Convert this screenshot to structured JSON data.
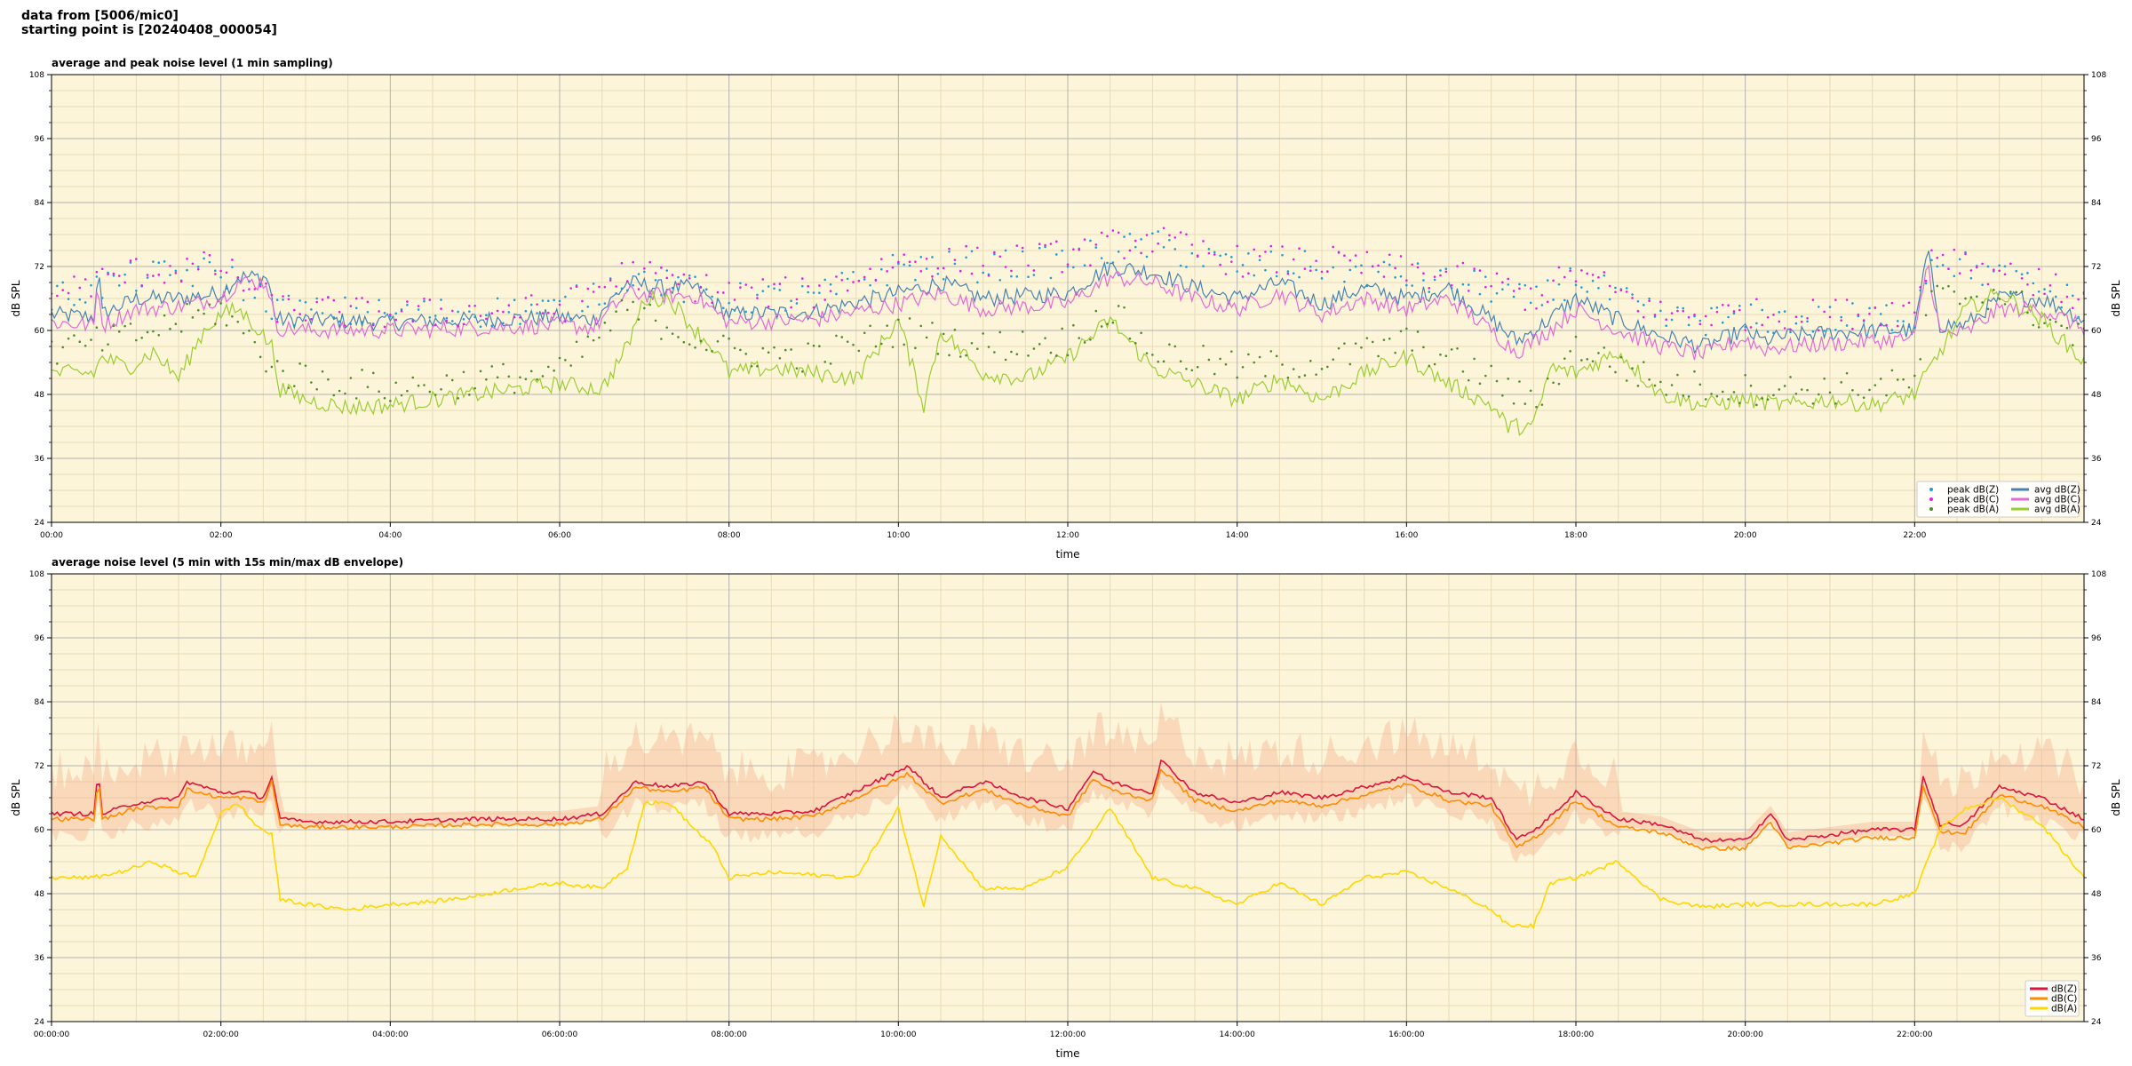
{
  "header": {
    "line1": "data from [5006/mic0]",
    "line2": "starting point is [20240408_000054]"
  },
  "colors": {
    "plot_bg": "#fdf5d9",
    "grid_major": "#b2b2b2",
    "grid_minor": "#e8dcb8",
    "peak_z": "#1f9bd6",
    "peak_c": "#e21ee6",
    "peak_a": "#4c8c2e",
    "avg_z": "#4682b4",
    "avg_c": "#e06ad6",
    "avg_a": "#9acd32",
    "db_z": "#dc143c",
    "db_c": "#ff8c00",
    "db_a": "#ffd700",
    "envelope": "#f4a582"
  },
  "chart_data": [
    {
      "type": "line",
      "title": "average and peak noise level (1 min sampling)",
      "xlabel": "time",
      "ylabel": "dB SPL",
      "ylim": [
        24,
        108
      ],
      "xlim_hours": [
        0,
        24
      ],
      "yticks": [
        "24",
        "36",
        "48",
        "60",
        "72",
        "84",
        "96",
        "108"
      ],
      "xticks": [
        "00:00",
        "02:00",
        "04:00",
        "06:00",
        "08:00",
        "10:00",
        "12:00",
        "14:00",
        "16:00",
        "18:00",
        "20:00",
        "22:00"
      ],
      "grid": true,
      "legend_position": "bottom-right",
      "legend": [
        "peak dB(Z)",
        "peak dB(C)",
        "peak dB(A)",
        "avg dB(Z)",
        "avg dB(C)",
        "avg dB(A)"
      ],
      "series": [
        {
          "name": "avg dB(Z)",
          "color": "#4682b4",
          "x": [
            0,
            0.5,
            0.55,
            0.6,
            1,
            1.5,
            2,
            2.2,
            2.55,
            2.65,
            3,
            4,
            5,
            6,
            6.4,
            6.8,
            7.2,
            7.6,
            8,
            9,
            10,
            10.5,
            11,
            12,
            12.5,
            13,
            13.5,
            14,
            14.5,
            15,
            15.5,
            16,
            16.5,
            17,
            17.3,
            17.6,
            18,
            18.5,
            19,
            19.5,
            20,
            20.2,
            20.5,
            21,
            21.5,
            22,
            22.15,
            22.3,
            22.6,
            23,
            23.5,
            24
          ],
          "y": [
            63,
            62.5,
            72,
            63,
            66,
            66,
            67,
            70,
            70,
            62,
            62,
            61.5,
            62,
            62.5,
            62,
            69,
            68,
            68,
            63,
            63.5,
            67,
            69,
            66,
            67,
            72,
            71,
            68,
            66,
            69,
            65,
            68,
            66,
            68,
            62,
            58,
            61,
            66,
            62,
            59,
            57,
            60,
            58,
            59,
            59.5,
            60,
            60,
            75,
            61,
            61,
            66,
            66,
            62
          ]
        },
        {
          "name": "avg dB(C)",
          "color": "#e06ad6",
          "x": [
            0,
            0.5,
            0.55,
            0.6,
            1,
            1.5,
            2,
            2.2,
            2.55,
            2.65,
            3,
            4,
            5,
            6,
            6.4,
            6.8,
            7.2,
            7.6,
            8,
            9,
            10,
            10.5,
            11,
            12,
            12.5,
            13,
            13.5,
            14,
            14.5,
            15,
            15.5,
            16,
            16.5,
            17,
            17.3,
            17.6,
            18,
            18.5,
            19,
            19.5,
            20,
            20.2,
            20.5,
            21,
            21.5,
            22,
            22.15,
            22.3,
            22.6,
            23,
            23.5,
            24
          ],
          "y": [
            61.5,
            61,
            70,
            61,
            64,
            64.5,
            66,
            69,
            69,
            60.5,
            60,
            60,
            60.5,
            61,
            60.5,
            67,
            66.5,
            66.5,
            61.5,
            62,
            65,
            67,
            64,
            65,
            70,
            69,
            66,
            64,
            67,
            63,
            66,
            64,
            66,
            60,
            56,
            59,
            64,
            60,
            57,
            55.5,
            58.5,
            56.5,
            57,
            57.5,
            58,
            58.5,
            73,
            59.5,
            59.5,
            64,
            64,
            60.5
          ]
        },
        {
          "name": "avg dB(A)",
          "color": "#9acd32",
          "x": [
            0,
            0.5,
            0.6,
            0.9,
            1.2,
            1.5,
            1.8,
            2,
            2.2,
            2.4,
            2.6,
            2.7,
            3,
            3.5,
            4,
            4.5,
            5,
            5.5,
            6,
            6.5,
            6.8,
            7,
            7.3,
            7.6,
            7.8,
            8,
            8.5,
            9,
            9.5,
            10,
            10.3,
            10.5,
            11,
            11.5,
            12,
            12.5,
            13,
            13.5,
            14,
            14.5,
            15,
            15.5,
            16,
            16.5,
            17,
            17.2,
            17.5,
            17.7,
            18,
            18.5,
            19,
            19.5,
            20,
            20.5,
            21,
            21.5,
            22,
            22.3,
            22.6,
            23,
            23.5,
            24
          ],
          "y": [
            52,
            52,
            55,
            53,
            56,
            51,
            60,
            63,
            64,
            61,
            57,
            49,
            47,
            45.5,
            46,
            47,
            48,
            49,
            50,
            49,
            57,
            66,
            66,
            60,
            57,
            52,
            53,
            52,
            51,
            62,
            46,
            60,
            52,
            51,
            55,
            62,
            53,
            50,
            47,
            51,
            47,
            52,
            55,
            50,
            46,
            42,
            42,
            53,
            52,
            56,
            48,
            46,
            47,
            46,
            47,
            46,
            48,
            56,
            64,
            67,
            62,
            54
          ]
        },
        {
          "name": "peak dB(Z)",
          "color": "#1f9bd6",
          "style": "dots",
          "x": [
            0,
            1,
            2,
            2.7,
            4,
            6,
            6.8,
            8,
            9,
            10,
            11,
            12,
            12.5,
            13,
            14,
            15,
            16,
            17,
            17.5,
            18,
            19,
            20,
            21,
            22,
            22.2,
            23,
            24
          ],
          "y": [
            66,
            70,
            71,
            64,
            63,
            64,
            70,
            66,
            66,
            72,
            72,
            73,
            75,
            76,
            72,
            72,
            70,
            68,
            65,
            70,
            62,
            62,
            62,
            63,
            74,
            70,
            65
          ]
        },
        {
          "name": "peak dB(C)",
          "color": "#e21ee6",
          "style": "dots",
          "x": [
            0,
            1,
            2,
            2.7,
            4,
            6,
            6.8,
            8,
            9,
            10,
            11,
            12,
            12.5,
            13,
            14,
            15,
            16,
            17,
            17.5,
            18,
            19,
            20,
            21,
            22,
            22.2,
            23,
            24
          ],
          "y": [
            67,
            71,
            72,
            64,
            63,
            64,
            71,
            67,
            67,
            73,
            73,
            74,
            76,
            77,
            73,
            73,
            71,
            69,
            66,
            71,
            63,
            63,
            63,
            64,
            75,
            71,
            66
          ]
        },
        {
          "name": "peak dB(A)",
          "color": "#4c8c2e",
          "style": "dots",
          "x": [
            0,
            1,
            2,
            2.7,
            4,
            6,
            6.8,
            8,
            9,
            10,
            11,
            12,
            12.5,
            13,
            14,
            15,
            16,
            17,
            17.5,
            18,
            19,
            20,
            21,
            22,
            22.2,
            23,
            24
          ],
          "y": [
            56,
            59,
            64,
            52,
            49,
            52,
            64,
            56,
            55,
            60,
            57,
            58,
            64,
            56,
            53,
            54,
            58,
            51,
            46,
            57,
            50,
            49,
            49,
            50,
            66,
            67,
            58
          ]
        }
      ]
    },
    {
      "type": "line",
      "title": "average noise level (5 min with 15s min/max dB envelope)",
      "xlabel": "time",
      "ylabel": "dB SPL",
      "ylim": [
        24,
        108
      ],
      "xlim_hours": [
        0,
        24
      ],
      "yticks": [
        "24",
        "36",
        "48",
        "60",
        "72",
        "84",
        "96",
        "108"
      ],
      "xticks": [
        "00:00:00",
        "02:00:00",
        "04:00:00",
        "06:00:00",
        "08:00:00",
        "10:00:00",
        "12:00:00",
        "14:00:00",
        "16:00:00",
        "18:00:00",
        "20:00:00",
        "22:00:00"
      ],
      "grid": true,
      "legend_position": "bottom-right",
      "legend": [
        "dB(Z)",
        "dB(C)",
        "dB(A)"
      ],
      "series": [
        {
          "name": "dB(Z)",
          "color": "#dc143c",
          "x": [
            0,
            0.5,
            0.55,
            0.6,
            1,
            1.5,
            1.6,
            2,
            2.3,
            2.5,
            2.6,
            2.7,
            3,
            4,
            5,
            6,
            6.5,
            6.9,
            7.3,
            7.7,
            8,
            8.5,
            9,
            10,
            10.1,
            10.5,
            11,
            11.5,
            12,
            12.3,
            12.5,
            13,
            13.1,
            13.5,
            14,
            14.5,
            15,
            15.5,
            16,
            16.5,
            17,
            17.3,
            17.6,
            18,
            18.5,
            19,
            19.5,
            20,
            20.3,
            20.5,
            21,
            21.5,
            22,
            22.1,
            22.3,
            22.6,
            23,
            23.5,
            24
          ],
          "y": [
            63,
            63,
            71,
            63,
            65,
            66,
            69,
            67,
            67,
            66,
            70,
            62,
            61.5,
            61.5,
            62,
            62,
            63,
            69,
            68,
            69,
            63,
            63,
            63.5,
            71,
            72,
            66,
            69,
            66,
            64,
            71,
            69,
            67,
            73,
            67,
            65,
            67,
            66,
            68,
            70,
            67,
            66,
            58,
            61,
            67,
            62,
            61,
            58,
            58,
            63,
            58,
            59,
            60,
            60,
            70,
            61,
            61,
            68,
            66,
            62
          ]
        },
        {
          "name": "dB(C)",
          "color": "#ff8c00",
          "x": [
            0,
            0.5,
            0.55,
            0.6,
            1,
            1.5,
            1.6,
            2,
            2.3,
            2.5,
            2.6,
            2.7,
            3,
            4,
            5,
            6,
            6.5,
            6.9,
            7.3,
            7.7,
            8,
            8.5,
            9,
            10,
            10.1,
            10.5,
            11,
            11.5,
            12,
            12.3,
            12.5,
            13,
            13.1,
            13.5,
            14,
            14.5,
            15,
            15.5,
            16,
            16.5,
            17,
            17.3,
            17.6,
            18,
            18.5,
            19,
            19.5,
            20,
            20.3,
            20.5,
            21,
            21.5,
            22,
            22.1,
            22.3,
            22.6,
            23,
            23.5,
            24
          ],
          "y": [
            62,
            62,
            70,
            62,
            64,
            64.5,
            67.5,
            66,
            66,
            65,
            69,
            61,
            60.5,
            60.5,
            61,
            61,
            62,
            68,
            67,
            68,
            62,
            62,
            62.5,
            69.5,
            70.5,
            65,
            67.5,
            64.5,
            62.5,
            69.5,
            67.5,
            65.5,
            71.5,
            65.5,
            63.5,
            65.5,
            64.5,
            66.5,
            68.5,
            65.5,
            64.5,
            56.5,
            59.5,
            65.5,
            60.5,
            59.5,
            56.5,
            56.5,
            61.5,
            56.5,
            57.5,
            58.5,
            58.5,
            68.5,
            59.5,
            59.5,
            66.5,
            64.5,
            60.5
          ]
        },
        {
          "name": "dB(A)",
          "color": "#ffd700",
          "x": [
            0,
            0.5,
            0.8,
            1,
            1.2,
            1.5,
            1.7,
            2,
            2.2,
            2.4,
            2.6,
            2.7,
            3,
            3.5,
            4,
            4.5,
            5,
            5.5,
            6,
            6.5,
            6.8,
            7,
            7.3,
            7.6,
            7.8,
            8,
            8.5,
            9,
            9.5,
            10,
            10.3,
            10.5,
            11,
            11.5,
            12,
            12.5,
            13,
            13.5,
            14,
            14.5,
            15,
            15.5,
            16,
            16.5,
            17,
            17.2,
            17.5,
            17.7,
            18,
            18.5,
            19,
            19.5,
            20,
            20.5,
            21,
            21.5,
            22,
            22.3,
            22.6,
            23,
            23.5,
            24
          ],
          "y": [
            51,
            51,
            52,
            53,
            54,
            52,
            51,
            63,
            65,
            61,
            59,
            47,
            46,
            45,
            46,
            46.5,
            47.5,
            49,
            50,
            49,
            53,
            65,
            65,
            60,
            57,
            51,
            52,
            51.5,
            51,
            64,
            45.5,
            59,
            49,
            49,
            53,
            64,
            51,
            49,
            46,
            50,
            46,
            51,
            52,
            49,
            45,
            42,
            42,
            50,
            51,
            54,
            47,
            45.5,
            46,
            46,
            46,
            46,
            48,
            60,
            64,
            66,
            61,
            51
          ]
        }
      ]
    }
  ]
}
